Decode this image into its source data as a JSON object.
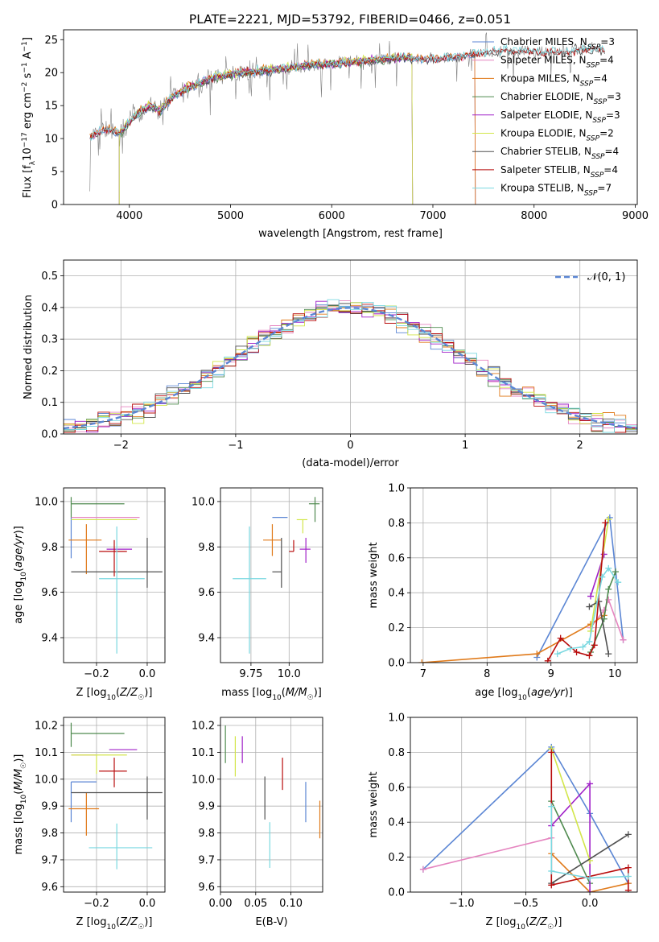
{
  "figure": {
    "title": "PLATE=2221, MJD=53792, FIBERID=0466, z=0.051"
  },
  "colors": {
    "chabrier_miles": "#5b86d4",
    "salpeter_miles": "#e585c0",
    "kroupa_miles": "#e07a1a",
    "chabrier_elodie": "#4f8a4f",
    "salpeter_elodie": "#a020c8",
    "kroupa_elodie": "#d2e64a",
    "chabrier_stelib": "#505050",
    "salpeter_stelib": "#b80c0c",
    "kroupa_stelib": "#7ad8e0",
    "normal": "#5b86d4"
  },
  "chart_data": [
    {
      "type": "line",
      "id": "spectrum",
      "title": "PLATE=2221, MJD=53792, FIBERID=0466, z=0.051",
      "xlabel": "wavelength [Angstrom, rest frame]",
      "ylabel": "Flux [f_λ 10^-17 erg cm^-2 s^-1 A^-1]",
      "xlim": [
        3350,
        9020
      ],
      "ylim": [
        0,
        26.5
      ],
      "xticks": [
        4000,
        5000,
        6000,
        7000,
        8000,
        9000
      ],
      "yticks": [
        0,
        5,
        10,
        15,
        20,
        25
      ],
      "grid": false,
      "legend_position": "upper right",
      "data_anchor_wavelength": [
        3610,
        3700,
        3800,
        3900,
        4000,
        4100,
        4200,
        4300,
        4400,
        4500,
        4700,
        4900,
        5100,
        5300,
        5500,
        5700,
        5900,
        6100,
        6300,
        6500,
        6700,
        6900,
        7100,
        7300,
        7500,
        7700,
        7900,
        8100,
        8300,
        8500,
        8700
      ],
      "data_anchor_flux": [
        10.2,
        11.0,
        11.5,
        10.8,
        12.5,
        14.0,
        15.0,
        14.2,
        16.0,
        17.0,
        18.5,
        19.5,
        20.0,
        20.3,
        20.5,
        21.0,
        21.3,
        21.5,
        21.8,
        22.0,
        22.3,
        22.0,
        22.2,
        22.5,
        23.0,
        23.3,
        23.3,
        23.0,
        23.2,
        23.5,
        23.5
      ],
      "series": [
        {
          "name": "Chabrier MILES, N_SSP=3",
          "color_key": "chabrier_miles",
          "range": [
            3610,
            7420
          ]
        },
        {
          "name": "Salpeter MILES, N_SSP=4",
          "color_key": "salpeter_miles",
          "range": [
            3610,
            7420
          ]
        },
        {
          "name": "Kroupa MILES, N_SSP=4",
          "color_key": "kroupa_miles",
          "range": [
            3610,
            7420
          ]
        },
        {
          "name": "Chabrier ELODIE, N_SSP=3",
          "color_key": "chabrier_elodie",
          "range": [
            3900,
            6800
          ]
        },
        {
          "name": "Salpeter ELODIE, N_SSP=3",
          "color_key": "salpeter_elodie",
          "range": [
            3900,
            6800
          ]
        },
        {
          "name": "Kroupa ELODIE, N_SSP=2",
          "color_key": "kroupa_elodie",
          "range": [
            3900,
            6800
          ]
        },
        {
          "name": "Chabrier STELIB, N_SSP=4",
          "color_key": "chabrier_stelib",
          "range": [
            3610,
            8700
          ]
        },
        {
          "name": "Salpeter STELIB, N_SSP=4",
          "color_key": "salpeter_stelib",
          "range": [
            3610,
            8700
          ]
        },
        {
          "name": "Kroupa STELIB, N_SSP=7",
          "color_key": "kroupa_stelib",
          "range": [
            3610,
            8700
          ]
        }
      ]
    },
    {
      "type": "line",
      "id": "residuals",
      "xlabel": "(data-model)/error",
      "ylabel": "Normed distribution",
      "xlim": [
        -2.5,
        2.5
      ],
      "ylim": [
        0,
        0.55
      ],
      "xticks": [
        -2,
        -1,
        0,
        1,
        2
      ],
      "yticks": [
        0.0,
        0.1,
        0.2,
        0.3,
        0.4,
        0.5
      ],
      "grid": true,
      "legend_position": "upper right",
      "normal_label": "𝒩(0, 1)",
      "bin_width": 0.1,
      "note": "nine step histograms of residuals, roughly following N(0,1)"
    },
    {
      "type": "scatter",
      "id": "age_vs_Z",
      "xlabel": "Z [log10(Z/Z☉)]",
      "ylabel": "age  [log10(age/yr)]",
      "xlim": [
        -0.33,
        0.07
      ],
      "ylim": [
        9.29,
        10.06
      ],
      "xticks": [
        -0.2,
        0.0
      ],
      "yticks": [
        9.4,
        9.6,
        9.8,
        10.0
      ],
      "grid": true,
      "points": [
        {
          "color_key": "chabrier_miles",
          "x": -0.3,
          "xerr": [
            0.0,
            0.0
          ],
          "y": 9.93,
          "yerr": [
            0.18,
            0.0
          ]
        },
        {
          "color_key": "salpeter_miles",
          "x": -0.2,
          "xerr": [
            0.1,
            0.17
          ],
          "y": 9.93,
          "yerr": [
            0.0,
            0.0
          ]
        },
        {
          "color_key": "kroupa_miles",
          "x": -0.24,
          "xerr": [
            0.07,
            0.06
          ],
          "y": 9.83,
          "yerr": [
            0.15,
            0.07
          ]
        },
        {
          "color_key": "chabrier_elodie",
          "x": -0.3,
          "xerr": [
            0.0,
            0.21
          ],
          "y": 9.99,
          "yerr": [
            0.06,
            0.03
          ]
        },
        {
          "color_key": "salpeter_elodie",
          "x": -0.1,
          "xerr": [
            0.06,
            0.04
          ],
          "y": 9.79,
          "yerr": [
            0.0,
            0.0
          ]
        },
        {
          "color_key": "kroupa_elodie",
          "x": -0.2,
          "xerr": [
            0.1,
            0.16
          ],
          "y": 9.92,
          "yerr": [
            0.0,
            0.0
          ]
        },
        {
          "color_key": "chabrier_stelib",
          "x": 0.0,
          "xerr": [
            0.3,
            0.06
          ],
          "y": 9.69,
          "yerr": [
            0.07,
            0.15
          ]
        },
        {
          "color_key": "salpeter_stelib",
          "x": -0.13,
          "xerr": [
            0.06,
            0.05
          ],
          "y": 9.78,
          "yerr": [
            0.11,
            0.05
          ]
        },
        {
          "color_key": "kroupa_stelib",
          "x": -0.12,
          "xerr": [
            0.07,
            0.11
          ],
          "y": 9.66,
          "yerr": [
            0.33,
            0.23
          ]
        }
      ]
    },
    {
      "type": "scatter",
      "id": "age_vs_mass",
      "xlabel": "mass [log10(M/M☉)]",
      "ylabel": "",
      "xlim": [
        9.55,
        10.22
      ],
      "ylim": [
        9.29,
        10.06
      ],
      "xticks": [
        9.75,
        10.0
      ],
      "yticks": [
        9.4,
        9.6,
        9.8,
        10.0
      ],
      "grid": true,
      "points": [
        {
          "color_key": "chabrier_miles",
          "x": 9.99,
          "xerr": [
            0.1,
            0.0
          ],
          "y": 9.93,
          "yerr": [
            0.0,
            0.0
          ]
        },
        {
          "color_key": "salpeter_miles",
          "x": 10.09,
          "xerr": [
            0.0,
            0.0
          ],
          "y": 9.93,
          "yerr": [
            0.0,
            0.0
          ]
        },
        {
          "color_key": "kroupa_miles",
          "x": 9.89,
          "xerr": [
            0.06,
            0.06
          ],
          "y": 9.83,
          "yerr": [
            0.07,
            0.07
          ]
        },
        {
          "color_key": "chabrier_elodie",
          "x": 10.17,
          "xerr": [
            0.04,
            0.03
          ],
          "y": 9.99,
          "yerr": [
            0.08,
            0.03
          ]
        },
        {
          "color_key": "salpeter_elodie",
          "x": 10.11,
          "xerr": [
            0.04,
            0.03
          ],
          "y": 9.79,
          "yerr": [
            0.06,
            0.05
          ]
        },
        {
          "color_key": "kroupa_elodie",
          "x": 10.09,
          "xerr": [
            0.04,
            0.03
          ],
          "y": 9.92,
          "yerr": [
            0.06,
            0.0
          ]
        },
        {
          "color_key": "chabrier_stelib",
          "x": 9.95,
          "xerr": [
            0.06,
            0.0
          ],
          "y": 9.69,
          "yerr": [
            0.07,
            0.15
          ]
        },
        {
          "color_key": "salpeter_stelib",
          "x": 10.03,
          "xerr": [
            0.03,
            0.0
          ],
          "y": 9.78,
          "yerr": [
            0.0,
            0.05
          ]
        },
        {
          "color_key": "kroupa_stelib",
          "x": 9.74,
          "xerr": [
            0.11,
            0.11
          ],
          "y": 9.66,
          "yerr": [
            0.33,
            0.23
          ]
        }
      ]
    },
    {
      "type": "line",
      "id": "weight_vs_age",
      "xlabel": "age  [log10(age/yr)]",
      "ylabel": "mass weight",
      "xlim": [
        6.8,
        10.35
      ],
      "ylim": [
        0,
        1.0
      ],
      "xticks": [
        7,
        8,
        9,
        10
      ],
      "yticks": [
        0.0,
        0.2,
        0.4,
        0.6,
        0.8,
        1.0
      ],
      "grid": true,
      "series": [
        {
          "color_key": "chabrier_miles",
          "x": [
            8.78,
            9.92,
            10.13
          ],
          "y": [
            0.03,
            0.83,
            0.13
          ]
        },
        {
          "color_key": "salpeter_miles",
          "x": [
            9.62,
            9.83,
            9.9,
            10.13
          ],
          "y": [
            0.2,
            0.3,
            0.36,
            0.13
          ]
        },
        {
          "color_key": "kroupa_miles",
          "x": [
            6.98,
            8.78,
            9.62,
            9.83
          ],
          "y": [
            0.0,
            0.05,
            0.22,
            0.27
          ]
        },
        {
          "color_key": "chabrier_elodie",
          "x": [
            9.62,
            9.83,
            9.9,
            10.01
          ],
          "y": [
            0.06,
            0.25,
            0.42,
            0.52
          ]
        },
        {
          "color_key": "salpeter_elodie",
          "x": [
            9.62,
            9.83
          ],
          "y": [
            0.38,
            0.62
          ]
        },
        {
          "color_key": "kroupa_elodie",
          "x": [
            9.62,
            9.9
          ],
          "y": [
            0.18,
            0.82
          ]
        },
        {
          "color_key": "chabrier_stelib",
          "x": [
            9.6,
            9.75,
            9.9
          ],
          "y": [
            0.32,
            0.35,
            0.05
          ]
        },
        {
          "color_key": "salpeter_stelib",
          "x": [
            8.95,
            9.15,
            9.4,
            9.6,
            9.68,
            9.85
          ],
          "y": [
            0.01,
            0.14,
            0.06,
            0.04,
            0.1,
            0.8
          ]
        },
        {
          "color_key": "kroupa_stelib",
          "x": [
            9.1,
            9.3,
            9.5,
            9.6,
            9.8,
            9.9,
            10.05
          ],
          "y": [
            0.05,
            0.08,
            0.09,
            0.12,
            0.49,
            0.54,
            0.46
          ]
        }
      ]
    },
    {
      "type": "scatter",
      "id": "mass_vs_Z",
      "xlabel": "Z [log10(Z/Z☉)]",
      "ylabel": "mass [log10(M/M☉)]",
      "xlim": [
        -0.33,
        0.07
      ],
      "ylim": [
        9.58,
        10.23
      ],
      "xticks": [
        -0.2,
        0.0
      ],
      "yticks": [
        9.6,
        9.7,
        9.8,
        9.9,
        10.0,
        10.1,
        10.2
      ],
      "grid": true,
      "points": [
        {
          "color_key": "chabrier_miles",
          "x": -0.3,
          "xerr": [
            0.0,
            0.1
          ],
          "y": 9.99,
          "yerr": [
            0.15,
            0.0
          ]
        },
        {
          "color_key": "salpeter_miles",
          "x": -0.2,
          "xerr": [
            0.1,
            0.0
          ],
          "y": 10.09,
          "yerr": [
            0.0,
            0.0
          ]
        },
        {
          "color_key": "kroupa_miles",
          "x": -0.24,
          "xerr": [
            0.07,
            0.05
          ],
          "y": 9.89,
          "yerr": [
            0.1,
            0.06
          ]
        },
        {
          "color_key": "chabrier_elodie",
          "x": -0.3,
          "xerr": [
            0.0,
            0.21
          ],
          "y": 10.17,
          "yerr": [
            0.05,
            0.04
          ]
        },
        {
          "color_key": "salpeter_elodie",
          "x": -0.15,
          "xerr": [
            0.0,
            0.11
          ],
          "y": 10.11,
          "yerr": [
            0.0,
            0.0
          ]
        },
        {
          "color_key": "kroupa_elodie",
          "x": -0.2,
          "xerr": [
            0.1,
            0.12
          ],
          "y": 10.09,
          "yerr": [
            0.07,
            0.0
          ]
        },
        {
          "color_key": "chabrier_stelib",
          "x": 0.0,
          "xerr": [
            0.3,
            0.06
          ],
          "y": 9.95,
          "yerr": [
            0.1,
            0.06
          ]
        },
        {
          "color_key": "salpeter_stelib",
          "x": -0.13,
          "xerr": [
            0.06,
            0.05
          ],
          "y": 10.03,
          "yerr": [
            0.06,
            0.05
          ]
        },
        {
          "color_key": "kroupa_stelib",
          "x": -0.12,
          "xerr": [
            0.11,
            0.14
          ],
          "y": 9.745,
          "yerr": [
            0.08,
            0.09
          ]
        }
      ]
    },
    {
      "type": "scatter",
      "id": "mass_vs_ebv",
      "xlabel": "E(B-V)",
      "ylabel": "",
      "xlim": [
        0.0,
        0.145
      ],
      "ylim": [
        9.58,
        10.23
      ],
      "xticks": [
        0.0,
        0.05,
        0.1
      ],
      "yticks": [
        9.6,
        9.7,
        9.8,
        9.9,
        10.0,
        10.1,
        10.2
      ],
      "grid": true,
      "points": [
        {
          "color_key": "chabrier_miles",
          "x": 0.121,
          "y": 9.92,
          "yerr": [
            0.08,
            0.07
          ]
        },
        {
          "color_key": "kroupa_miles",
          "x": 0.141,
          "y": 9.85,
          "yerr": [
            0.07,
            0.07
          ]
        },
        {
          "color_key": "chabrier_elodie",
          "x": 0.007,
          "y": 10.13,
          "yerr": [
            0.07,
            0.07
          ]
        },
        {
          "color_key": "kroupa_elodie",
          "x": 0.021,
          "y": 10.09,
          "yerr": [
            0.08,
            0.07
          ]
        },
        {
          "color_key": "salpeter_elodie",
          "x": 0.031,
          "y": 10.11,
          "yerr": [
            0.05,
            0.05
          ]
        },
        {
          "color_key": "chabrier_stelib",
          "x": 0.063,
          "y": 9.93,
          "yerr": [
            0.08,
            0.08
          ]
        },
        {
          "color_key": "salpeter_stelib",
          "x": 0.088,
          "y": 10.02,
          "yerr": [
            0.06,
            0.06
          ]
        },
        {
          "color_key": "kroupa_stelib",
          "x": 0.07,
          "y": 9.75,
          "yerr": [
            0.08,
            0.09
          ]
        }
      ]
    },
    {
      "type": "line",
      "id": "weight_vs_Z",
      "xlabel": "Z [log10(Z/Z☉)]",
      "ylabel": "mass weight",
      "xlim": [
        -1.4,
        0.37
      ],
      "ylim": [
        0,
        1.0
      ],
      "xticks": [
        -1.0,
        -0.5,
        0.0
      ],
      "yticks": [
        0.0,
        0.2,
        0.4,
        0.6,
        0.8,
        1.0
      ],
      "grid": true,
      "series": [
        {
          "color_key": "chabrier_miles",
          "x": [
            -1.3,
            -0.3,
            0.0,
            0.3
          ],
          "y": [
            0.13,
            0.83,
            0.45,
            0.05
          ]
        },
        {
          "color_key": "salpeter_miles",
          "x": [
            -1.3,
            -0.3
          ],
          "y": [
            0.13,
            0.31
          ]
        },
        {
          "color_key": "kroupa_miles",
          "x": [
            -0.3,
            0.0,
            0.3
          ],
          "y": [
            0.22,
            0.0,
            0.05
          ]
        },
        {
          "color_key": "chabrier_elodie",
          "x": [
            -0.3,
            0.0
          ],
          "y": [
            0.52,
            0.05
          ]
        },
        {
          "color_key": "salpeter_elodie",
          "x": [
            -0.3,
            0.0,
            0.0
          ],
          "y": [
            0.38,
            0.62,
            0.0
          ]
        },
        {
          "color_key": "kroupa_elodie",
          "x": [
            -0.3,
            0.0
          ],
          "y": [
            0.82,
            0.18
          ]
        },
        {
          "color_key": "chabrier_stelib",
          "x": [
            -0.3,
            0.3
          ],
          "y": [
            0.05,
            0.33
          ]
        },
        {
          "color_key": "salpeter_stelib",
          "x": [
            -0.3,
            -0.3,
            0.3,
            0.3
          ],
          "y": [
            0.8,
            0.04,
            0.14,
            0.01
          ]
        },
        {
          "color_key": "kroupa_stelib",
          "x": [
            -0.3,
            -0.3,
            0.0,
            0.3
          ],
          "y": [
            0.49,
            0.12,
            0.08,
            0.09
          ]
        }
      ]
    }
  ]
}
